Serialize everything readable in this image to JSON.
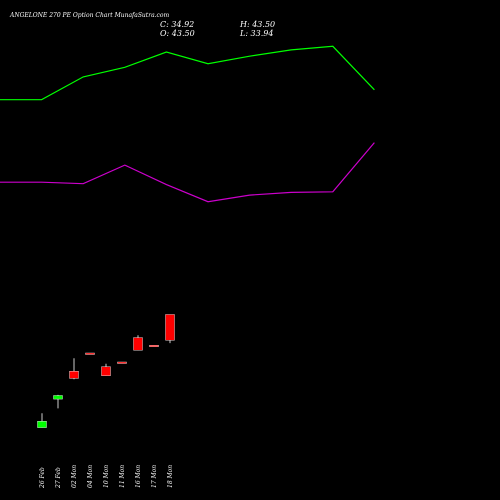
{
  "header": {
    "title": "ANGELONE 270  PE Option  Chart MunafaSutra.com",
    "close": "C: 34.92",
    "open": "O: 43.50",
    "high": "H: 43.50",
    "low": "L: 33.94"
  },
  "chart_data": {
    "type": "candlestick",
    "title": "ANGELONE 270  PE Option  Chart MunafaSutra.com",
    "categories": [
      "26 Feb",
      "27 Feb",
      "02 Mon",
      "04 Mon",
      "10 Mon",
      "11 Mon",
      "16 Mon",
      "17 Mon",
      "18 Mon"
    ],
    "ohlc": [
      {
        "date": "26 Feb",
        "open": 5.8,
        "high": 10.6,
        "low": 5.8,
        "close": 7.9
      },
      {
        "date": "27 Feb",
        "open": 15.3,
        "high": 16.7,
        "low": 12.2,
        "close": 16.5
      },
      {
        "date": "02 Mon",
        "open": 24.6,
        "high": 28.9,
        "low": 21.9,
        "close": 22.2
      },
      {
        "date": "04 Mon",
        "open": 30.6,
        "high": 30.6,
        "low": 30.2,
        "close": 30.3
      },
      {
        "date": "10 Mon",
        "open": 26.1,
        "high": 27.1,
        "low": 23.1,
        "close": 23.1
      },
      {
        "date": "11 Mon",
        "open": 27.6,
        "high": 27.6,
        "low": 27.4,
        "close": 27.4
      },
      {
        "date": "16 Mon",
        "open": 35.8,
        "high": 36.6,
        "low": 31.6,
        "close": 31.6
      },
      {
        "date": "17 Mon",
        "open": 33.2,
        "high": 33.2,
        "low": 32.9,
        "close": 32.9
      },
      {
        "date": "18 Mon",
        "open": 43.5,
        "high": 43.5,
        "low": 33.94,
        "close": 34.92
      }
    ],
    "bands": [
      {
        "color": "#00ff00",
        "x": [
          0,
          1,
          2,
          3,
          4,
          5,
          6,
          7,
          8,
          9
        ],
        "values": [
          115.1,
          115.1,
          122.7,
          125.9,
          131.0,
          127.1,
          129.6,
          131.7,
          132.9,
          118.4
        ]
      },
      {
        "color": "#cc00cc",
        "x": [
          0,
          1,
          2,
          3,
          4,
          5,
          6,
          7,
          8,
          9
        ],
        "values": [
          87.6,
          87.6,
          87.1,
          93.3,
          86.8,
          81.1,
          83.3,
          84.2,
          84.4,
          100.8
        ]
      }
    ],
    "ylim": [
      0,
      145
    ],
    "up_color": "#00ff00",
    "down_color": "#ff0000",
    "background": "#000000",
    "grid": false
  }
}
